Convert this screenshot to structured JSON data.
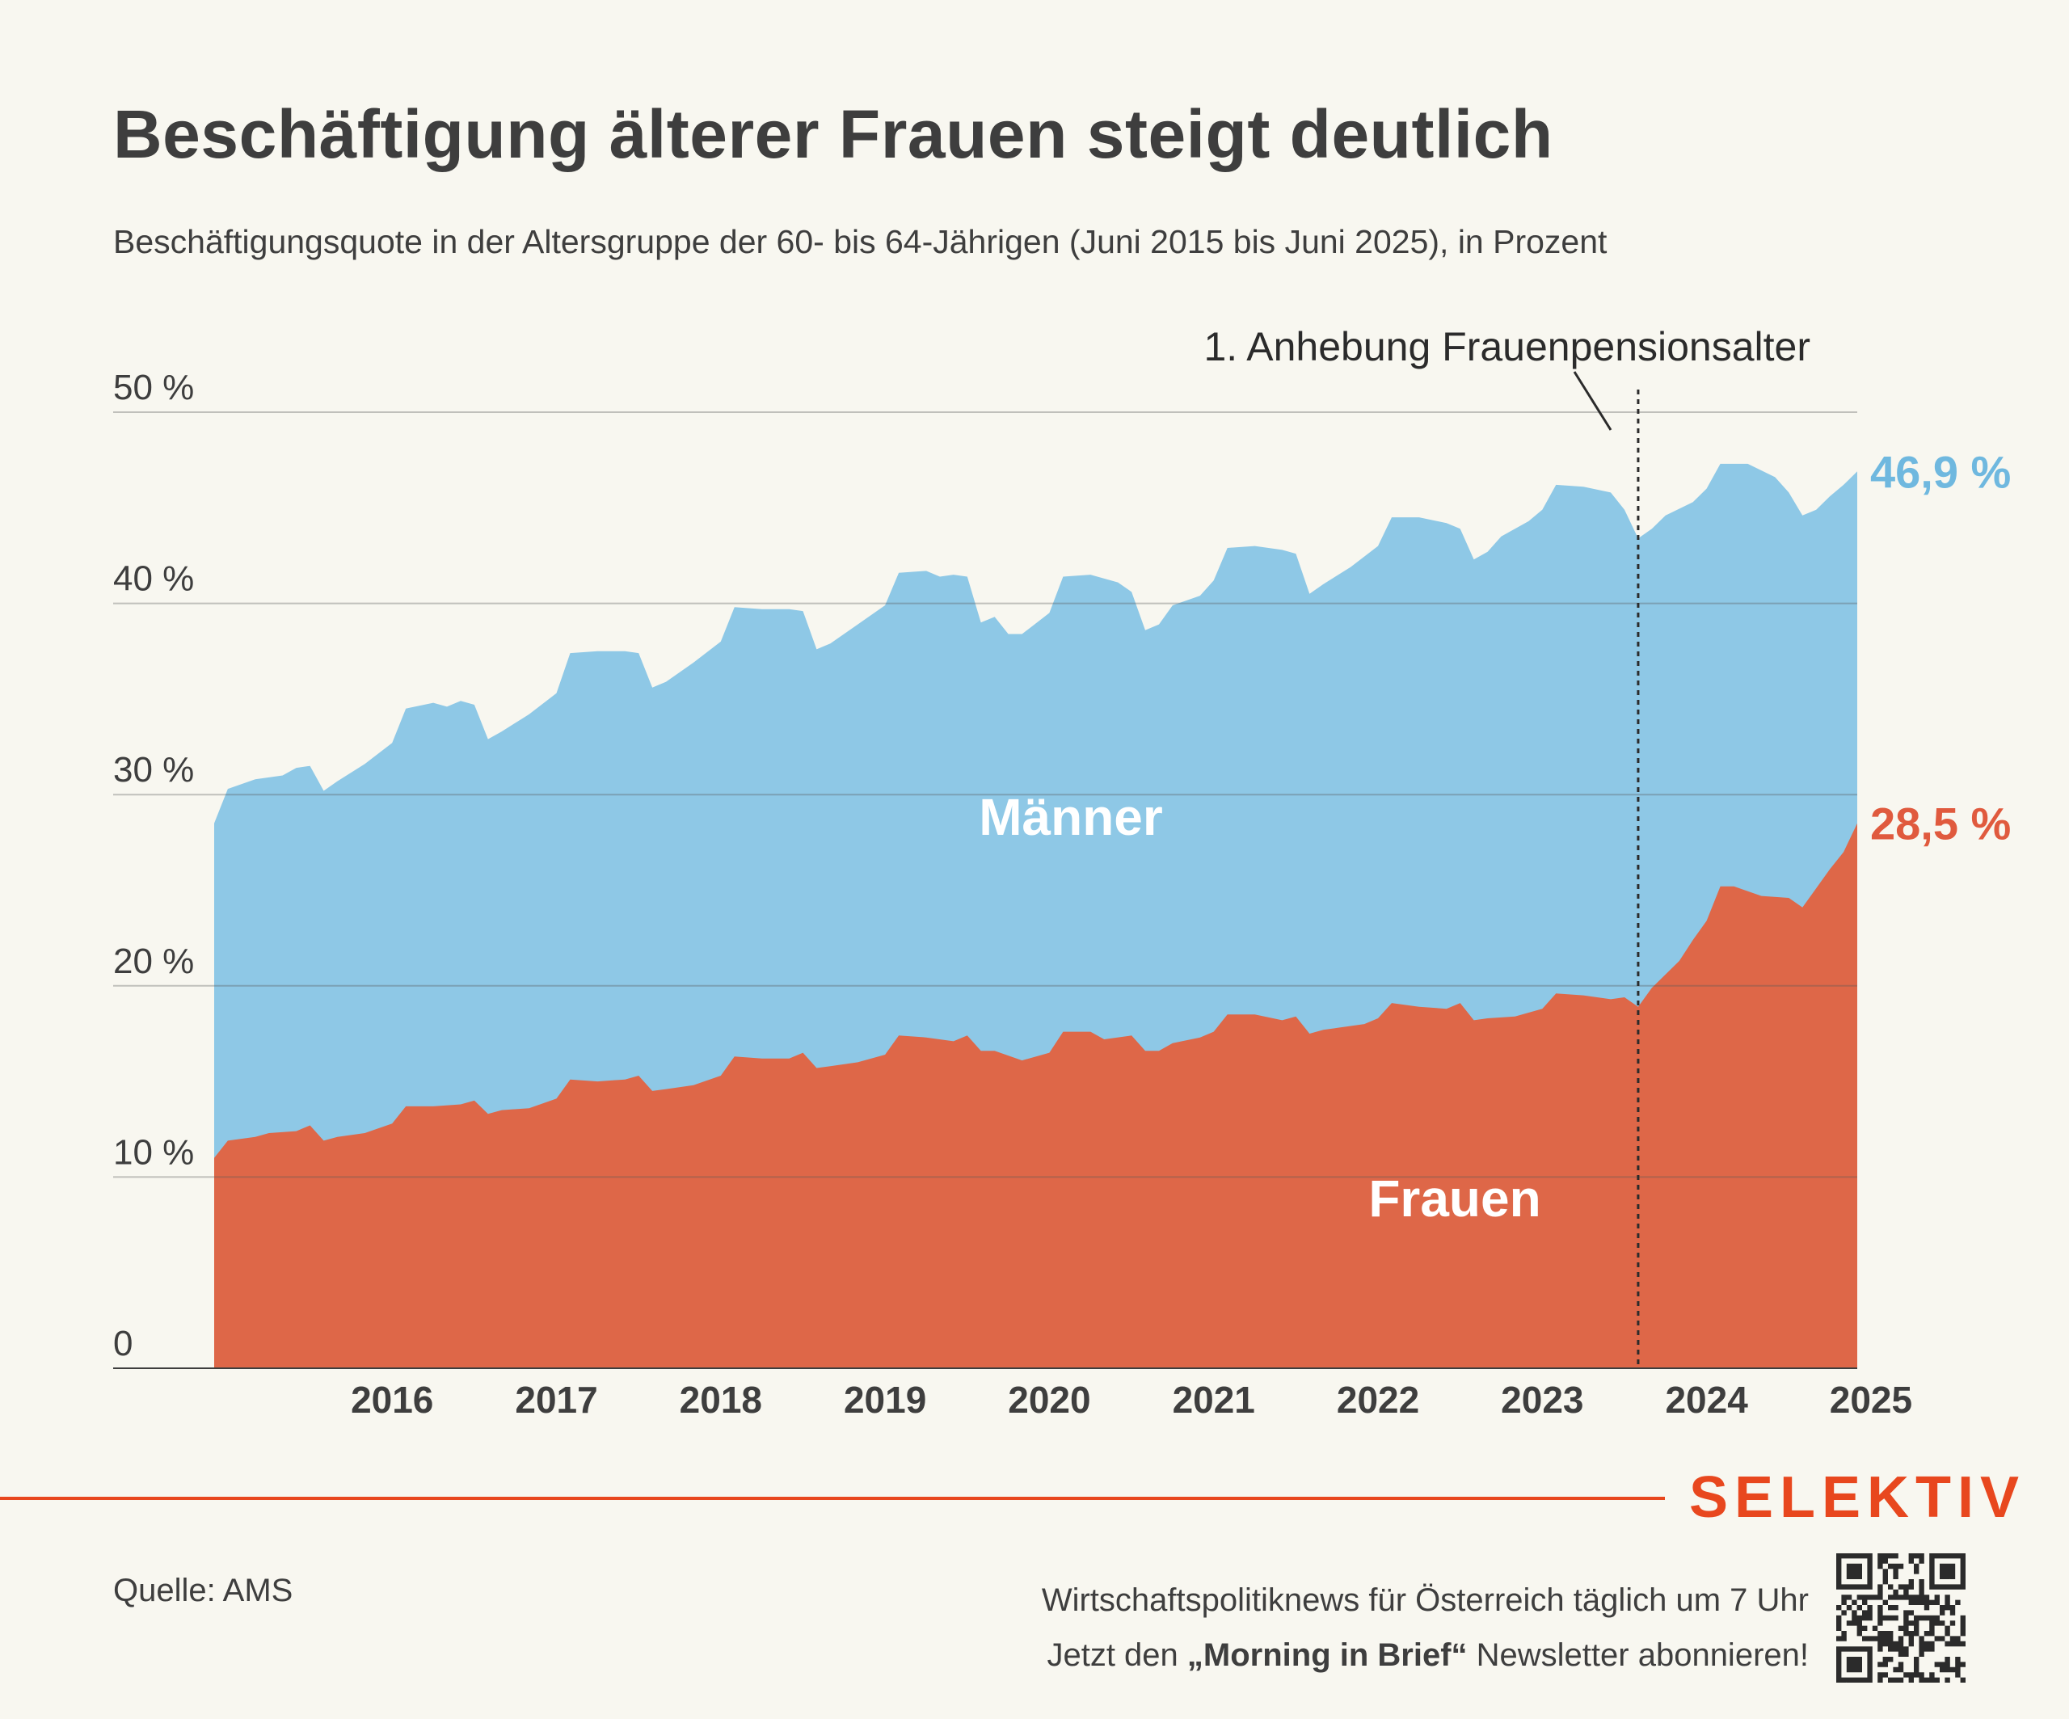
{
  "header": {
    "title": "Beschäftigung älterer Frauen steigt deutlich",
    "subtitle": "Beschäftigungsquote in der Altersgruppe der 60- bis 64-Jährigen (Juni 2015 bis Juni 2025), in Prozent"
  },
  "colors": {
    "maenner": "#8ec8e6",
    "frauen": "#de6748",
    "maenner_label": "#6fb8df",
    "frauen_label": "#e05a3e",
    "brand": "#e8471e"
  },
  "chart_data": {
    "type": "area",
    "title": "Beschäftigung älterer Frauen steigt deutlich",
    "subtitle": "Beschäftigungsquote in der Altersgruppe der 60- bis 64-Jährigen (Juni 2015 bis Juni 2025), in Prozent",
    "x_start": "2015-06",
    "x_end": "2025-06",
    "ylim": [
      0,
      50
    ],
    "y_ticks": [
      0,
      10,
      20,
      30,
      40,
      50
    ],
    "y_tick_labels": [
      "0",
      "10 %",
      "20 %",
      "30 %",
      "40 %",
      "50 %"
    ],
    "x_tick_labels": [
      "2016",
      "2017",
      "2018",
      "2019",
      "2020",
      "2021",
      "2022",
      "2023",
      "2024",
      "2025"
    ],
    "grid": true,
    "series": [
      {
        "name": "Männer",
        "points": [
          [
            "2015-06",
            28.5
          ],
          [
            "2015-07",
            30.3
          ],
          [
            "2015-09",
            30.8
          ],
          [
            "2015-11",
            31.0
          ],
          [
            "2015-12",
            31.4
          ],
          [
            "2016-01",
            31.5
          ],
          [
            "2016-02",
            30.2
          ],
          [
            "2016-03",
            30.7
          ],
          [
            "2016-05",
            31.6
          ],
          [
            "2016-07",
            32.7
          ],
          [
            "2016-08",
            34.5
          ],
          [
            "2016-10",
            34.8
          ],
          [
            "2016-11",
            34.6
          ],
          [
            "2016-12",
            34.9
          ],
          [
            "2017-01",
            34.7
          ],
          [
            "2017-02",
            32.9
          ],
          [
            "2017-03",
            33.3
          ],
          [
            "2017-05",
            34.2
          ],
          [
            "2017-07",
            35.3
          ],
          [
            "2017-08",
            37.4
          ],
          [
            "2017-10",
            37.5
          ],
          [
            "2017-12",
            37.5
          ],
          [
            "2018-01",
            37.4
          ],
          [
            "2018-02",
            35.6
          ],
          [
            "2018-03",
            35.9
          ],
          [
            "2018-05",
            36.9
          ],
          [
            "2018-07",
            38.0
          ],
          [
            "2018-08",
            39.8
          ],
          [
            "2018-10",
            39.7
          ],
          [
            "2018-12",
            39.7
          ],
          [
            "2019-01",
            39.6
          ],
          [
            "2019-02",
            37.6
          ],
          [
            "2019-03",
            37.9
          ],
          [
            "2019-05",
            38.9
          ],
          [
            "2019-07",
            39.9
          ],
          [
            "2019-08",
            41.6
          ],
          [
            "2019-10",
            41.7
          ],
          [
            "2019-11",
            41.4
          ],
          [
            "2019-12",
            41.5
          ],
          [
            "2020-01",
            41.4
          ],
          [
            "2020-02",
            39.0
          ],
          [
            "2020-03",
            39.3
          ],
          [
            "2020-04",
            38.4
          ],
          [
            "2020-05",
            38.4
          ],
          [
            "2020-07",
            39.5
          ],
          [
            "2020-08",
            41.4
          ],
          [
            "2020-10",
            41.5
          ],
          [
            "2020-12",
            41.1
          ],
          [
            "2021-01",
            40.6
          ],
          [
            "2021-02",
            38.6
          ],
          [
            "2021-03",
            38.9
          ],
          [
            "2021-04",
            39.9
          ],
          [
            "2021-06",
            40.4
          ],
          [
            "2021-07",
            41.2
          ],
          [
            "2021-08",
            42.9
          ],
          [
            "2021-10",
            43.0
          ],
          [
            "2021-12",
            42.8
          ],
          [
            "2022-01",
            42.6
          ],
          [
            "2022-02",
            40.5
          ],
          [
            "2022-03",
            41.0
          ],
          [
            "2022-05",
            41.9
          ],
          [
            "2022-07",
            43.0
          ],
          [
            "2022-08",
            44.5
          ],
          [
            "2022-10",
            44.5
          ],
          [
            "2022-12",
            44.2
          ],
          [
            "2023-01",
            43.9
          ],
          [
            "2023-02",
            42.3
          ],
          [
            "2023-03",
            42.7
          ],
          [
            "2023-04",
            43.5
          ],
          [
            "2023-06",
            44.3
          ],
          [
            "2023-07",
            44.9
          ],
          [
            "2023-08",
            46.2
          ],
          [
            "2023-10",
            46.1
          ],
          [
            "2023-12",
            45.8
          ],
          [
            "2024-01",
            44.9
          ],
          [
            "2024-02",
            43.4
          ],
          [
            "2024-03",
            43.9
          ],
          [
            "2024-04",
            44.6
          ],
          [
            "2024-06",
            45.3
          ],
          [
            "2024-07",
            46.0
          ],
          [
            "2024-08",
            47.3
          ],
          [
            "2024-10",
            47.3
          ],
          [
            "2024-12",
            46.6
          ],
          [
            "2025-01",
            45.8
          ],
          [
            "2025-02",
            44.6
          ],
          [
            "2025-03",
            44.9
          ],
          [
            "2025-04",
            45.6
          ],
          [
            "2025-05",
            46.2
          ],
          [
            "2025-06",
            46.9
          ]
        ]
      },
      {
        "name": "Frauen",
        "points": [
          [
            "2015-06",
            11.0
          ],
          [
            "2015-07",
            11.9
          ],
          [
            "2015-09",
            12.1
          ],
          [
            "2015-10",
            12.3
          ],
          [
            "2015-12",
            12.4
          ],
          [
            "2016-01",
            12.7
          ],
          [
            "2016-02",
            11.9
          ],
          [
            "2016-03",
            12.1
          ],
          [
            "2016-05",
            12.3
          ],
          [
            "2016-07",
            12.8
          ],
          [
            "2016-08",
            13.7
          ],
          [
            "2016-10",
            13.7
          ],
          [
            "2016-12",
            13.8
          ],
          [
            "2017-01",
            14.0
          ],
          [
            "2017-02",
            13.3
          ],
          [
            "2017-03",
            13.5
          ],
          [
            "2017-05",
            13.6
          ],
          [
            "2017-07",
            14.1
          ],
          [
            "2017-08",
            15.1
          ],
          [
            "2017-10",
            15.0
          ],
          [
            "2017-12",
            15.1
          ],
          [
            "2018-01",
            15.3
          ],
          [
            "2018-02",
            14.5
          ],
          [
            "2018-03",
            14.6
          ],
          [
            "2018-05",
            14.8
          ],
          [
            "2018-07",
            15.3
          ],
          [
            "2018-08",
            16.3
          ],
          [
            "2018-10",
            16.2
          ],
          [
            "2018-12",
            16.2
          ],
          [
            "2019-01",
            16.5
          ],
          [
            "2019-02",
            15.7
          ],
          [
            "2019-03",
            15.8
          ],
          [
            "2019-05",
            16.0
          ],
          [
            "2019-07",
            16.4
          ],
          [
            "2019-08",
            17.4
          ],
          [
            "2019-10",
            17.3
          ],
          [
            "2019-12",
            17.1
          ],
          [
            "2020-01",
            17.4
          ],
          [
            "2020-02",
            16.6
          ],
          [
            "2020-03",
            16.6
          ],
          [
            "2020-05",
            16.1
          ],
          [
            "2020-07",
            16.5
          ],
          [
            "2020-08",
            17.6
          ],
          [
            "2020-10",
            17.6
          ],
          [
            "2020-11",
            17.2
          ],
          [
            "2021-01",
            17.4
          ],
          [
            "2021-02",
            16.6
          ],
          [
            "2021-03",
            16.6
          ],
          [
            "2021-04",
            17.0
          ],
          [
            "2021-06",
            17.3
          ],
          [
            "2021-07",
            17.6
          ],
          [
            "2021-08",
            18.5
          ],
          [
            "2021-10",
            18.5
          ],
          [
            "2021-12",
            18.2
          ],
          [
            "2022-01",
            18.4
          ],
          [
            "2022-02",
            17.5
          ],
          [
            "2022-03",
            17.7
          ],
          [
            "2022-04",
            17.8
          ],
          [
            "2022-06",
            18.0
          ],
          [
            "2022-07",
            18.3
          ],
          [
            "2022-08",
            19.1
          ],
          [
            "2022-10",
            18.9
          ],
          [
            "2022-12",
            18.8
          ],
          [
            "2023-01",
            19.1
          ],
          [
            "2023-02",
            18.2
          ],
          [
            "2023-03",
            18.3
          ],
          [
            "2023-05",
            18.4
          ],
          [
            "2023-07",
            18.8
          ],
          [
            "2023-08",
            19.6
          ],
          [
            "2023-10",
            19.5
          ],
          [
            "2023-12",
            19.3
          ],
          [
            "2024-01",
            19.4
          ],
          [
            "2024-02",
            18.9
          ],
          [
            "2024-03",
            19.9
          ],
          [
            "2024-05",
            21.3
          ],
          [
            "2024-06",
            22.4
          ],
          [
            "2024-07",
            23.4
          ],
          [
            "2024-08",
            25.2
          ],
          [
            "2024-09",
            25.2
          ],
          [
            "2024-11",
            24.7
          ],
          [
            "2025-01",
            24.6
          ],
          [
            "2025-02",
            24.1
          ],
          [
            "2025-03",
            25.1
          ],
          [
            "2025-04",
            26.1
          ],
          [
            "2025-05",
            27.0
          ],
          [
            "2025-06",
            28.5
          ]
        ]
      }
    ],
    "area_labels": {
      "maenner": "Männer",
      "frauen": "Frauen"
    },
    "end_labels": {
      "maenner": "46,9 %",
      "frauen": "28,5 %"
    },
    "annotation": {
      "date": "2024-02",
      "label": "1. Anhebung Frauenpensionsalter"
    }
  },
  "footer": {
    "brand": "SELEKTIV",
    "source": "Quelle: AMS",
    "promo_line1": "Wirtschaftspolitiknews für Österreich täglich um 7 Uhr",
    "promo_line2_pre": "Jetzt den ",
    "promo_line2_bold": "„Morning in Brief“",
    "promo_line2_post": " Newsletter abonnieren!",
    "qr_icon": "qr-code-icon"
  }
}
